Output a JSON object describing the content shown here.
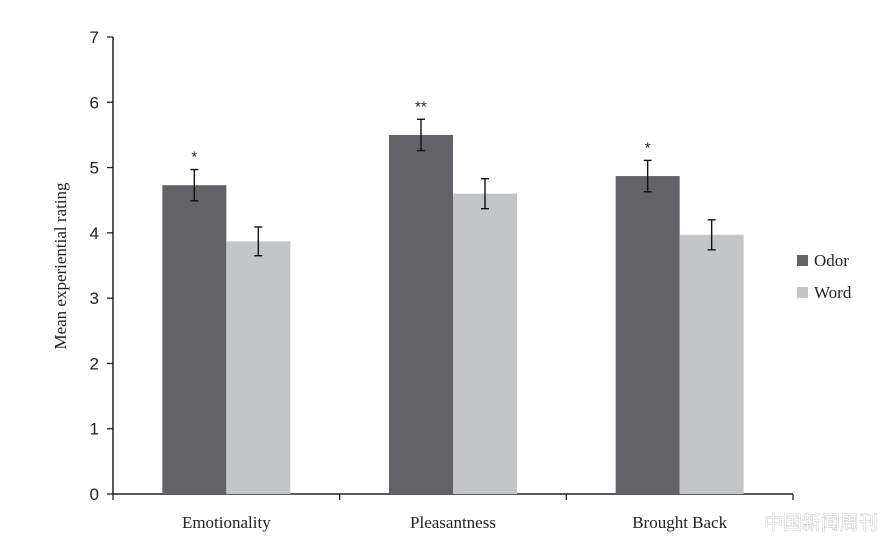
{
  "chart_data": {
    "type": "bar",
    "title": "",
    "xlabel": "",
    "ylabel": "Mean experiential rating",
    "ylim": [
      0,
      7
    ],
    "yticks": [
      0,
      1,
      2,
      3,
      4,
      5,
      6,
      7
    ],
    "grid": false,
    "legend_position": "right",
    "categories": [
      "Emotionality",
      "Pleasantness",
      "Brought Back"
    ],
    "series": [
      {
        "name": "Odor",
        "color": "#636266",
        "values": [
          4.73,
          5.5,
          4.87
        ],
        "errors": [
          0.24,
          0.24,
          0.24
        ],
        "significance": [
          "*",
          "**",
          "*"
        ]
      },
      {
        "name": "Word",
        "color": "#c4c5c7",
        "values": [
          3.87,
          4.6,
          3.97
        ],
        "errors": [
          0.22,
          0.23,
          0.23
        ],
        "significance": [
          "",
          "",
          ""
        ]
      }
    ]
  },
  "watermark": "中国新闻周刊"
}
